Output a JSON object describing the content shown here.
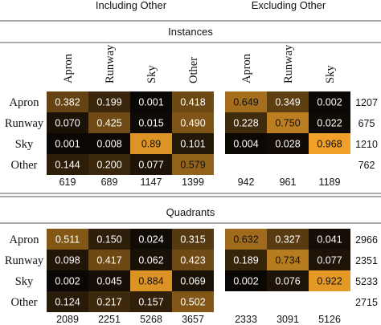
{
  "headers": {
    "including": "Including Other",
    "excluding": "Excluding Other"
  },
  "chart_data": [
    {
      "type": "heatmap",
      "title": "Instances",
      "row_labels": [
        "Apron",
        "Runway",
        "Sky",
        "Other"
      ],
      "including_other": {
        "col_labels": [
          "Apron",
          "Runway",
          "Sky",
          "Other"
        ],
        "values": [
          [
            0.382,
            0.199,
            0.001,
            0.418
          ],
          [
            0.07,
            0.425,
            0.015,
            0.49
          ],
          [
            0.001,
            0.008,
            0.89,
            0.101
          ],
          [
            0.144,
            0.2,
            0.077,
            0.579
          ]
        ],
        "value_text": [
          [
            "0.382",
            "0.199",
            "0.001",
            "0.418"
          ],
          [
            "0.070",
            "0.425",
            "0.015",
            "0.490"
          ],
          [
            "0.001",
            "0.008",
            "0.89",
            "0.101"
          ],
          [
            "0.144",
            "0.200",
            "0.077",
            "0.579"
          ]
        ],
        "col_totals": [
          "619",
          "689",
          "1147",
          "1399"
        ]
      },
      "excluding_other": {
        "col_labels": [
          "Apron",
          "Runway",
          "Sky"
        ],
        "values": [
          [
            0.649,
            0.349,
            0.002
          ],
          [
            0.228,
            0.75,
            0.022
          ],
          [
            0.004,
            0.028,
            0.968
          ]
        ],
        "value_text": [
          [
            "0.649",
            "0.349",
            "0.002"
          ],
          [
            "0.228",
            "0.750",
            "0.022"
          ],
          [
            "0.004",
            "0.028",
            "0.968"
          ]
        ],
        "col_totals": [
          "942",
          "961",
          "1189"
        ]
      },
      "row_totals": [
        "1207",
        "675",
        "1210",
        "762"
      ]
    },
    {
      "type": "heatmap",
      "title": "Quadrants",
      "row_labels": [
        "Apron",
        "Runway",
        "Sky",
        "Other"
      ],
      "including_other": {
        "col_labels": [
          "Apron",
          "Runway",
          "Sky",
          "Other"
        ],
        "values": [
          [
            0.511,
            0.15,
            0.024,
            0.315
          ],
          [
            0.098,
            0.417,
            0.062,
            0.423
          ],
          [
            0.002,
            0.045,
            0.884,
            0.069
          ],
          [
            0.124,
            0.217,
            0.157,
            0.502
          ]
        ],
        "value_text": [
          [
            "0.511",
            "0.150",
            "0.024",
            "0.315"
          ],
          [
            "0.098",
            "0.417",
            "0.062",
            "0.423"
          ],
          [
            "0.002",
            "0.045",
            "0.884",
            "0.069"
          ],
          [
            "0.124",
            "0.217",
            "0.157",
            "0.502"
          ]
        ],
        "col_totals": [
          "2089",
          "2251",
          "5268",
          "3657"
        ]
      },
      "excluding_other": {
        "col_labels": [
          "Apron",
          "Runway",
          "Sky"
        ],
        "values": [
          [
            0.632,
            0.327,
            0.041
          ],
          [
            0.189,
            0.734,
            0.077
          ],
          [
            0.002,
            0.076,
            0.922
          ]
        ],
        "value_text": [
          [
            "0.632",
            "0.327",
            "0.041"
          ],
          [
            "0.189",
            "0.734",
            "0.077"
          ],
          [
            "0.002",
            "0.076",
            "0.922"
          ]
        ],
        "col_totals": [
          "2333",
          "3091",
          "5126"
        ]
      },
      "row_totals": [
        "2966",
        "2351",
        "5233",
        "2715"
      ]
    }
  ],
  "colors": {
    "low": "#0b0704",
    "high": "#f6a52a",
    "text_light": "#ffffff",
    "text_dark": "#111111",
    "rule": "#222222"
  }
}
